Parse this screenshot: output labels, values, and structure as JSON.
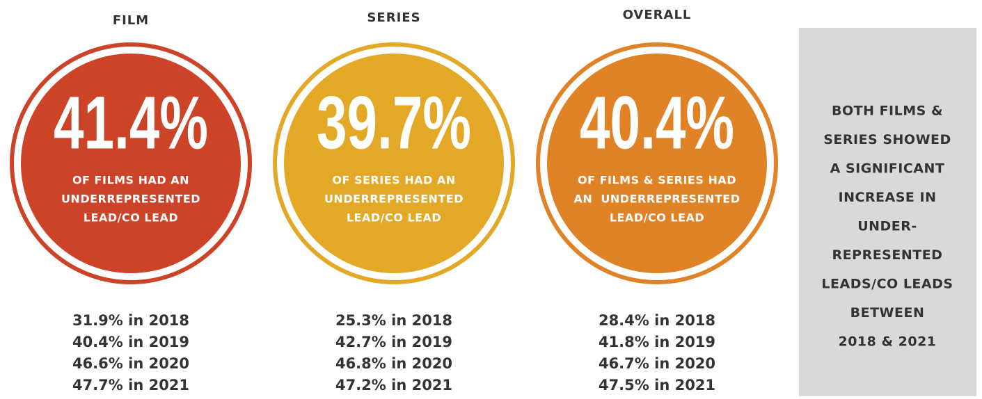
{
  "panels": [
    {
      "heading": "FILM",
      "stat": "41.4%",
      "color": "#cc4328",
      "caption": [
        "OF FILMS HAD AN",
        "UNDERREPRESENTED",
        "LEAD/CO LEAD"
      ],
      "history": [
        "31.9% in 2018",
        "40.4% in 2019",
        "46.6% in 2020",
        "47.7% in 2021"
      ]
    },
    {
      "heading": "SERIES",
      "stat": "39.7%",
      "color": "#e3a826",
      "caption": [
        "OF SERIES HAD AN",
        "UNDERREPRESENTED",
        "LEAD/CO LEAD"
      ],
      "history": [
        "25.3% in 2018",
        "42.7% in 2019",
        "46.8% in 2020",
        "47.2% in 2021"
      ]
    },
    {
      "heading": "OVERALL",
      "stat": "40.4%",
      "color": "#e08326",
      "caption": [
        "OF FILMS & SERIES HAD",
        "AN  UNDERREPRESENTED",
        "LEAD/CO LEAD"
      ],
      "history": [
        "28.4% in 2018",
        "41.8% in 2019",
        "46.7% in 2020",
        "47.5% in 2021"
      ]
    }
  ],
  "sidebar": [
    "BOTH FILMS &",
    "SERIES SHOWED",
    "A SIGNIFICANT",
    "INCREASE IN",
    "UNDER-",
    "REPRESENTED",
    "LEADS/CO LEADS",
    "BETWEEN",
    "2018 & 2021"
  ]
}
